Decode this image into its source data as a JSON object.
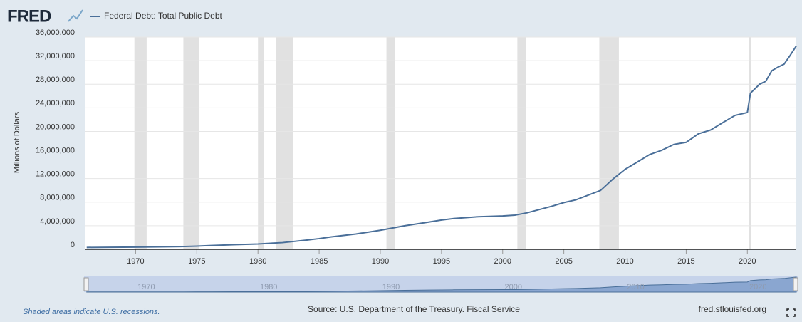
{
  "logo": "FRED",
  "chart_data": {
    "type": "line",
    "y_label": "Millions of Dollars",
    "x": [
      1966,
      1968,
      1970,
      1972,
      1974,
      1975,
      1976,
      1978,
      1980,
      1982,
      1984,
      1985,
      1986,
      1988,
      1990,
      1992,
      1994,
      1995,
      1996,
      1998,
      2000,
      2001,
      2002,
      2004,
      2005,
      2006,
      2008,
      2009,
      2010,
      2011,
      2012,
      2013,
      2014,
      2015,
      2016,
      2017,
      2018,
      2019,
      2020,
      2020.25,
      2021,
      2021.5,
      2022,
      2022.5,
      2023,
      2023.5,
      2024
    ],
    "series": [
      {
        "name": "Federal Debt: Total Public Debt",
        "color": "#4a6f99",
        "values": [
          320000,
          350000,
          380000,
          430000,
          480000,
          540000,
          630000,
          780000,
          910000,
          1140000,
          1570000,
          1820000,
          2120000,
          2600000,
          3230000,
          4000000,
          4640000,
          4970000,
          5220000,
          5530000,
          5660000,
          5800000,
          6200000,
          7300000,
          7930000,
          8400000,
          9990000,
          11900000,
          13560000,
          14800000,
          16070000,
          16800000,
          17800000,
          18150000,
          19600000,
          20240000,
          21500000,
          22720000,
          23200000,
          26480000,
          28000000,
          28500000,
          30300000,
          30900000,
          31400000,
          32900000,
          34500000
        ]
      }
    ],
    "xlim": [
      1965.9,
      2024
    ],
    "ylim": [
      0,
      36000000
    ],
    "xticks": [
      1970,
      1975,
      1980,
      1985,
      1990,
      1995,
      2000,
      2005,
      2010,
      2015,
      2020
    ],
    "yticks": [
      0,
      {
        "value": 4000000,
        "label": "4,000,000"
      },
      {
        "value": 8000000,
        "label": "8,000,000"
      },
      {
        "value": 12000000,
        "label": "12,000,000"
      },
      {
        "value": 16000000,
        "label": "16,000,000"
      },
      {
        "value": 20000000,
        "label": "20,000,000"
      },
      {
        "value": 24000000,
        "label": "24,000,000"
      },
      {
        "value": 28000000,
        "label": "28,000,000"
      },
      {
        "value": 32000000,
        "label": "32,000,000"
      },
      {
        "value": 36000000,
        "label": "36,000,000"
      }
    ],
    "recessions": [
      [
        1969.9,
        1970.9
      ],
      [
        1973.9,
        1975.2
      ],
      [
        1980.0,
        1980.5
      ],
      [
        1981.5,
        1982.9
      ],
      [
        1990.5,
        1991.2
      ],
      [
        2001.2,
        2001.9
      ],
      [
        2007.9,
        2009.5
      ],
      [
        2020.1,
        2020.3
      ]
    ],
    "grid": true,
    "recession_note": "Shaded areas indicate U.S. recessions.",
    "source": "Source: U.S. Department of the Treasury. Fiscal Service",
    "site": "fred.stlouisfed.org"
  }
}
